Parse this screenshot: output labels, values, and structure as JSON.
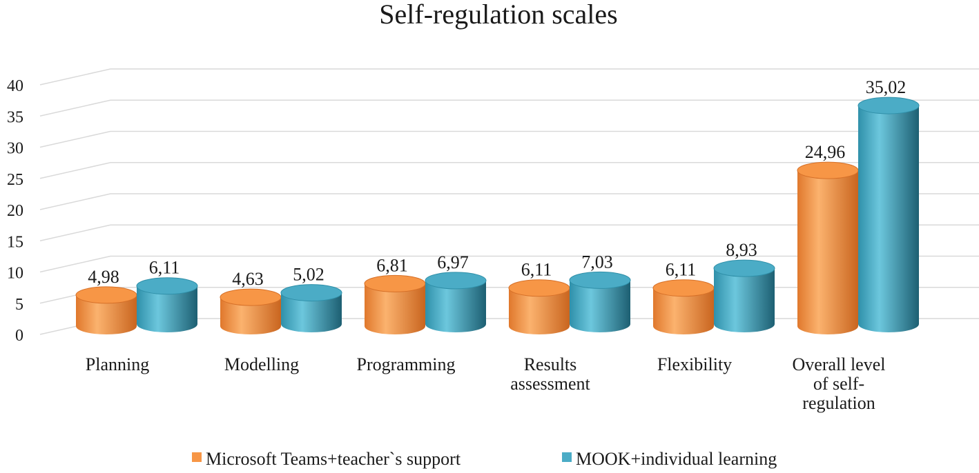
{
  "chart_data": {
    "type": "bar",
    "title": "Self-regulation scales",
    "xlabel": "",
    "ylabel": "",
    "ylim": [
      0,
      40
    ],
    "yticks": [
      "0",
      "5",
      "10",
      "15",
      "20",
      "25",
      "30",
      "35",
      "40"
    ],
    "categories": [
      [
        "Planning"
      ],
      [
        "Modelling"
      ],
      [
        "Programming"
      ],
      [
        "Results",
        "assessment"
      ],
      [
        "Flexibility"
      ],
      [
        "Overall level",
        "of self-",
        "regulation"
      ]
    ],
    "series": [
      {
        "name": "Microsoft Teams+teacher`s support",
        "color": "#f79646",
        "values": [
          4.98,
          4.63,
          6.81,
          6.11,
          6.11,
          24.96
        ],
        "labels": [
          "4,98",
          "4,63",
          "6,81",
          "6,11",
          "6,11",
          "24,96"
        ]
      },
      {
        "name": "MOOK+individual learning",
        "color": "#4bacc6",
        "values": [
          6.11,
          5.02,
          6.97,
          7.03,
          8.93,
          35.02
        ],
        "labels": [
          "6,11",
          "5,02",
          "6,97",
          "7,03",
          "8,93",
          "35,02"
        ]
      }
    ],
    "grid": true,
    "legend_position": "bottom",
    "style": "3d-cylinder"
  }
}
